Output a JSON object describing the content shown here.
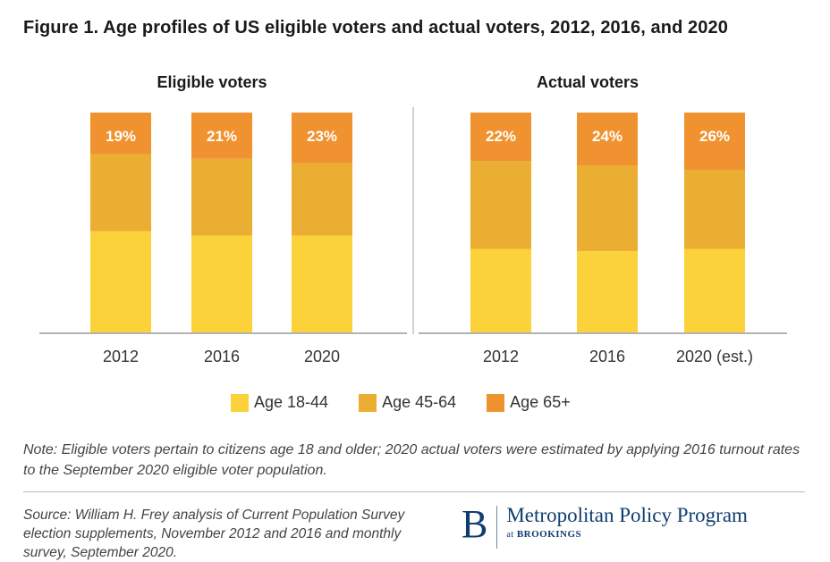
{
  "title": "Figure 1. Age profiles of US eligible voters and actual voters, 2012, 2016, and 2020",
  "colors": {
    "age_18_44": "#fcd23a",
    "age_45_64": "#e9ae32",
    "age_65_plus": "#f0922f",
    "axis": "#9a9a9a",
    "label_white": "#ffffff"
  },
  "chart_data": [
    {
      "type": "bar",
      "stacked": true,
      "title": "Eligible voters",
      "categories": [
        "2012",
        "2016",
        "2020"
      ],
      "series": [
        {
          "name": "Age 18-44",
          "values": [
            46,
            44,
            44
          ]
        },
        {
          "name": "Age 45-64",
          "values": [
            35,
            35,
            33
          ]
        },
        {
          "name": "Age 65+",
          "values": [
            19,
            21,
            23
          ]
        }
      ],
      "data_labels": [
        "19%",
        "21%",
        "23%"
      ],
      "ylim": [
        0,
        100
      ]
    },
    {
      "type": "bar",
      "stacked": true,
      "title": "Actual voters",
      "categories": [
        "2012",
        "2016",
        "2020 (est.)"
      ],
      "series": [
        {
          "name": "Age 18-44",
          "values": [
            38,
            37,
            38
          ]
        },
        {
          "name": "Age 45-64",
          "values": [
            40,
            39,
            36
          ]
        },
        {
          "name": "Age 65+",
          "values": [
            22,
            24,
            26
          ]
        }
      ],
      "data_labels": [
        "22%",
        "24%",
        "26%"
      ],
      "ylim": [
        0,
        100
      ]
    }
  ],
  "legend": [
    {
      "label": "Age 18-44",
      "color": "#fcd23a"
    },
    {
      "label": "Age 45-64",
      "color": "#e9ae32"
    },
    {
      "label": "Age 65+",
      "color": "#f0922f"
    }
  ],
  "note": "Note: Eligible voters pertain to citizens age 18 and older; 2020 actual voters were estimated by applying 2016 turnout rates to the September 2020 eligible voter population.",
  "source": "Source: William H. Frey analysis of Current Population Survey election supplements, November 2012 and 2016 and monthly survey, September 2020.",
  "logo": {
    "letter": "B",
    "program": "Metropolitan Policy Program",
    "at": "at",
    "org": "BROOKINGS"
  }
}
